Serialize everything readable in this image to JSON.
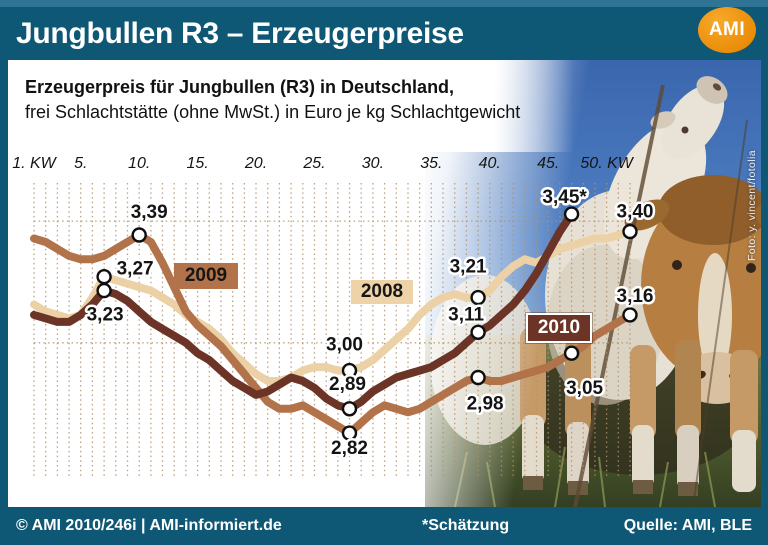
{
  "header": {
    "title": "Jungbullen R3 – Erzeugerpreise",
    "logo": "AMI"
  },
  "subtitle": {
    "line1": "Erzeugerpreis für Jungbullen (R3) in Deutschland,",
    "line2": "frei Schlachtstätte (ohne MwSt.) in Euro je kg Schlachtgewicht"
  },
  "photo_credit": "Foto: y. vincent/fotolia",
  "footer": {
    "left": "© AMI 2010/246i | AMI-informiert.de",
    "center": "*Schätzung",
    "right": "Quelle: AMI, BLE"
  },
  "colors": {
    "frame_teal": "#0e5875",
    "logo_orange": "#ef9210",
    "grid": "#b3916b",
    "series_2008": "#edd1a6",
    "series_2009": "#b2724a",
    "series_2010": "#6b3427"
  },
  "chart_data": {
    "type": "line",
    "title": "Erzeugerpreis für Jungbullen (R3) in Deutschland",
    "subtitle": "frei Schlachtstätte (ohne MwSt.) in Euro je kg Schlachtgewicht",
    "x_unit": "Kalenderwoche (KW)",
    "y_unit": "Euro je kg Schlachtgewicht",
    "xlim": [
      1,
      52
    ],
    "ylim": [
      2.7,
      3.55
    ],
    "grid": "vertical dotted line per week, two horizontal dotted reference lines",
    "h_gridline_values": [
      3.43,
      3.08
    ],
    "legend_position": "colored year boxes placed on the lines",
    "footnote": "*Schätzung",
    "x_ticks": [
      {
        "label": "1. KW",
        "week": 1
      },
      {
        "label": "5.",
        "week": 5
      },
      {
        "label": "10.",
        "week": 10
      },
      {
        "label": "15.",
        "week": 15
      },
      {
        "label": "20.",
        "week": 20
      },
      {
        "label": "25.",
        "week": 25
      },
      {
        "label": "30.",
        "week": 30
      },
      {
        "label": "35.",
        "week": 35
      },
      {
        "label": "40.",
        "week": 40
      },
      {
        "label": "45.",
        "week": 45
      },
      {
        "label": "50. KW",
        "week": 50
      }
    ],
    "series": [
      {
        "name": "2008",
        "color": "#edd1a6",
        "start_week": 1,
        "values": [
          3.19,
          3.17,
          3.16,
          3.15,
          3.16,
          3.21,
          3.27,
          3.26,
          3.25,
          3.24,
          3.23,
          3.21,
          3.19,
          3.16,
          3.14,
          3.12,
          3.09,
          3.05,
          3.02,
          2.99,
          2.97,
          2.97,
          2.98,
          3.0,
          3.01,
          3.01,
          3.0,
          3.0,
          3.01,
          3.03,
          3.06,
          3.09,
          3.12,
          3.16,
          3.19,
          3.21,
          3.22,
          3.21,
          3.21,
          3.23,
          3.27,
          3.3,
          3.32,
          3.31,
          3.33,
          3.35,
          3.36,
          3.37,
          3.38,
          3.38,
          3.39,
          3.4
        ],
        "labeled_points": [
          {
            "week": 7,
            "value": 3.27,
            "label": "3,27",
            "dx": 31,
            "dy": -7
          },
          {
            "week": 28,
            "value": 3.0,
            "label": "3,00",
            "dx": -5,
            "dy": -25
          },
          {
            "week": 39,
            "value": 3.21,
            "label": "3,21",
            "dx": -10,
            "dy": -30
          },
          {
            "week": 52,
            "value": 3.4,
            "label": "3,40",
            "dx": 5,
            "dy": -19
          }
        ]
      },
      {
        "name": "2009",
        "color": "#b2724a",
        "start_week": 1,
        "values": [
          3.38,
          3.37,
          3.35,
          3.33,
          3.32,
          3.32,
          3.33,
          3.35,
          3.37,
          3.39,
          3.37,
          3.31,
          3.24,
          3.17,
          3.13,
          3.1,
          3.07,
          3.03,
          2.99,
          2.95,
          2.91,
          2.89,
          2.89,
          2.9,
          2.88,
          2.86,
          2.84,
          2.82,
          2.85,
          2.88,
          2.9,
          2.89,
          2.88,
          2.89,
          2.91,
          2.93,
          2.95,
          2.97,
          2.98,
          2.97,
          2.97,
          2.98,
          2.99,
          3.0,
          3.01,
          3.03,
          3.05,
          3.07,
          3.1,
          3.12,
          3.14,
          3.16
        ],
        "labeled_points": [
          {
            "week": 10,
            "value": 3.39,
            "label": "3,39",
            "dx": 10,
            "dy": -22
          },
          {
            "week": 28,
            "value": 2.82,
            "label": "2,82",
            "dx": 0,
            "dy": 16
          },
          {
            "week": 39,
            "value": 2.98,
            "label": "2,98",
            "dx": 7,
            "dy": 27
          },
          {
            "week": 47,
            "value": 3.05,
            "label": "3,05",
            "dx": 13,
            "dy": 36
          },
          {
            "week": 52,
            "value": 3.16,
            "label": "3,16",
            "dx": 5,
            "dy": -18
          }
        ]
      },
      {
        "name": "2010",
        "color": "#6b3427",
        "note": "Linie endet in KW 47, letzter Wert ist Schätzung (*)",
        "start_week": 1,
        "values": [
          3.16,
          3.15,
          3.14,
          3.14,
          3.16,
          3.19,
          3.23,
          3.22,
          3.2,
          3.17,
          3.14,
          3.12,
          3.1,
          3.08,
          3.05,
          3.03,
          3.0,
          2.97,
          2.95,
          2.93,
          2.94,
          2.96,
          2.98,
          2.97,
          2.95,
          2.92,
          2.9,
          2.89,
          2.91,
          2.94,
          2.96,
          2.98,
          2.99,
          3.0,
          3.01,
          3.03,
          3.05,
          3.08,
          3.11,
          3.13,
          3.16,
          3.19,
          3.23,
          3.28,
          3.34,
          3.4,
          3.45
        ],
        "labeled_points": [
          {
            "week": 7,
            "value": 3.23,
            "label": "3,23",
            "dx": 1,
            "dy": 25
          },
          {
            "week": 28,
            "value": 2.89,
            "label": "2,89",
            "dx": -2,
            "dy": -24
          },
          {
            "week": 39,
            "value": 3.11,
            "label": "3,11",
            "dx": -12,
            "dy": -17
          },
          {
            "week": 47,
            "value": 3.45,
            "label": "3,45*",
            "dx": -7,
            "dy": -16
          }
        ]
      }
    ]
  }
}
